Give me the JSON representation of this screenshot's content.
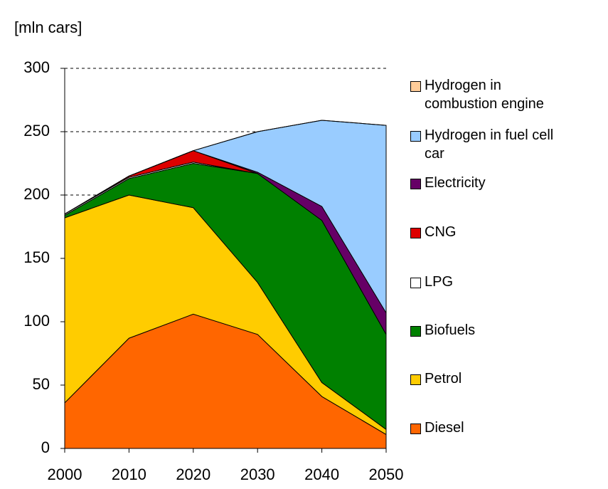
{
  "chart_data": {
    "type": "stacked_area",
    "y_label": "[mln cars]",
    "categories": [
      "2000",
      "2010",
      "2020",
      "2030",
      "2040",
      "2050"
    ],
    "series": [
      {
        "name": "Diesel",
        "color": "#FF6600",
        "values": [
          36,
          87,
          106,
          90,
          41,
          11
        ]
      },
      {
        "name": "Petrol",
        "color": "#FFCC00",
        "values": [
          146,
          113,
          84,
          41,
          11,
          4
        ]
      },
      {
        "name": "Biofuels",
        "color": "#008000",
        "values": [
          2,
          13,
          35,
          86,
          128,
          75
        ]
      },
      {
        "name": "LPG",
        "color": "#FFFFFF",
        "values": [
          1,
          1,
          1,
          0,
          0,
          0
        ]
      },
      {
        "name": "CNG",
        "color": "#DD0000",
        "values": [
          0,
          1,
          9,
          0,
          0,
          0
        ]
      },
      {
        "name": "Electricity",
        "color": "#660066",
        "values": [
          0,
          0,
          0,
          1,
          11,
          17
        ]
      },
      {
        "name": "Hydrogen in fuel cell car",
        "color": "#99CCFF",
        "values": [
          0,
          0,
          0,
          32,
          68,
          148
        ]
      },
      {
        "name": "Hydrogen in combustion engine",
        "color": "#FFCC99",
        "values": [
          0,
          0,
          0,
          0,
          0,
          0
        ]
      }
    ],
    "ylim": [
      0,
      300
    ],
    "yticks": [
      0,
      50,
      100,
      150,
      200,
      250,
      300
    ],
    "grid": true,
    "legend": "right"
  }
}
